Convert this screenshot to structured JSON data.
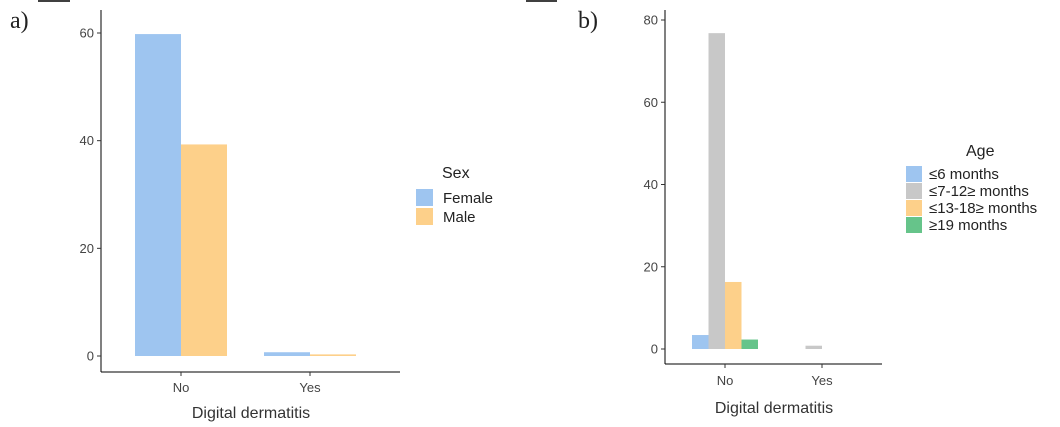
{
  "chart_data": [
    {
      "type": "bar",
      "panel_label": "a)",
      "categories": [
        "No",
        "Yes"
      ],
      "series": [
        {
          "name": "Female",
          "color": "#9ec5f0",
          "values": [
            59.8,
            0.7
          ]
        },
        {
          "name": "Male",
          "color": "#fdd08a",
          "values": [
            39.3,
            0.3
          ]
        }
      ],
      "xlabel": "Digital dermatitis",
      "ylabel": "",
      "ylim": [
        0,
        62
      ],
      "yticks": [
        0,
        20,
        40,
        60
      ],
      "legend_title": "Sex",
      "legend_position": "right",
      "grid": false
    },
    {
      "type": "bar",
      "panel_label": "b)",
      "categories": [
        "No",
        "Yes"
      ],
      "series": [
        {
          "name": "≤6 months",
          "color": "#9ec5f0",
          "values": [
            3.4,
            0
          ]
        },
        {
          "name": "≤7-12≥ months",
          "color": "#c8c8c8",
          "values": [
            76.8,
            0.8
          ]
        },
        {
          "name": "≤13-18≥ months",
          "color": "#fdd08a",
          "values": [
            16.3,
            0
          ]
        },
        {
          "name": "≥19 months",
          "color": "#66c48a",
          "values": [
            2.3,
            0
          ]
        }
      ],
      "xlabel": "Digital dermatitis",
      "ylabel": "",
      "ylim": [
        0,
        80.5
      ],
      "yticks": [
        0,
        20,
        40,
        60,
        80
      ],
      "legend_title": "Age",
      "legend_position": "right",
      "grid": false
    }
  ]
}
